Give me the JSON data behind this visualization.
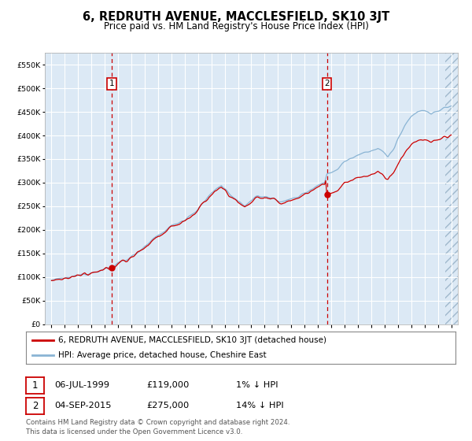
{
  "title": "6, REDRUTH AVENUE, MACCLESFIELD, SK10 3JT",
  "subtitle": "Price paid vs. HM Land Registry's House Price Index (HPI)",
  "legend_line1": "6, REDRUTH AVENUE, MACCLESFIELD, SK10 3JT (detached house)",
  "legend_line2": "HPI: Average price, detached house, Cheshire East",
  "annotation1_date": "06-JUL-1999",
  "annotation1_price": "£119,000",
  "annotation1_hpi": "1% ↓ HPI",
  "annotation2_date": "04-SEP-2015",
  "annotation2_price": "£275,000",
  "annotation2_hpi": "14% ↓ HPI",
  "sale1_year": 1999.54,
  "sale1_price": 119000,
  "sale2_year": 2015.67,
  "sale2_price": 275000,
  "hpi_color": "#8ab4d4",
  "price_color": "#cc0000",
  "marker_color": "#cc0000",
  "bg_color": "#dce9f5",
  "grid_color": "#ffffff",
  "footnote": "Contains HM Land Registry data © Crown copyright and database right 2024.\nThis data is licensed under the Open Government Licence v3.0.",
  "ylim": [
    0,
    575000
  ],
  "xlim_start": 1994.5,
  "xlim_end": 2025.5
}
